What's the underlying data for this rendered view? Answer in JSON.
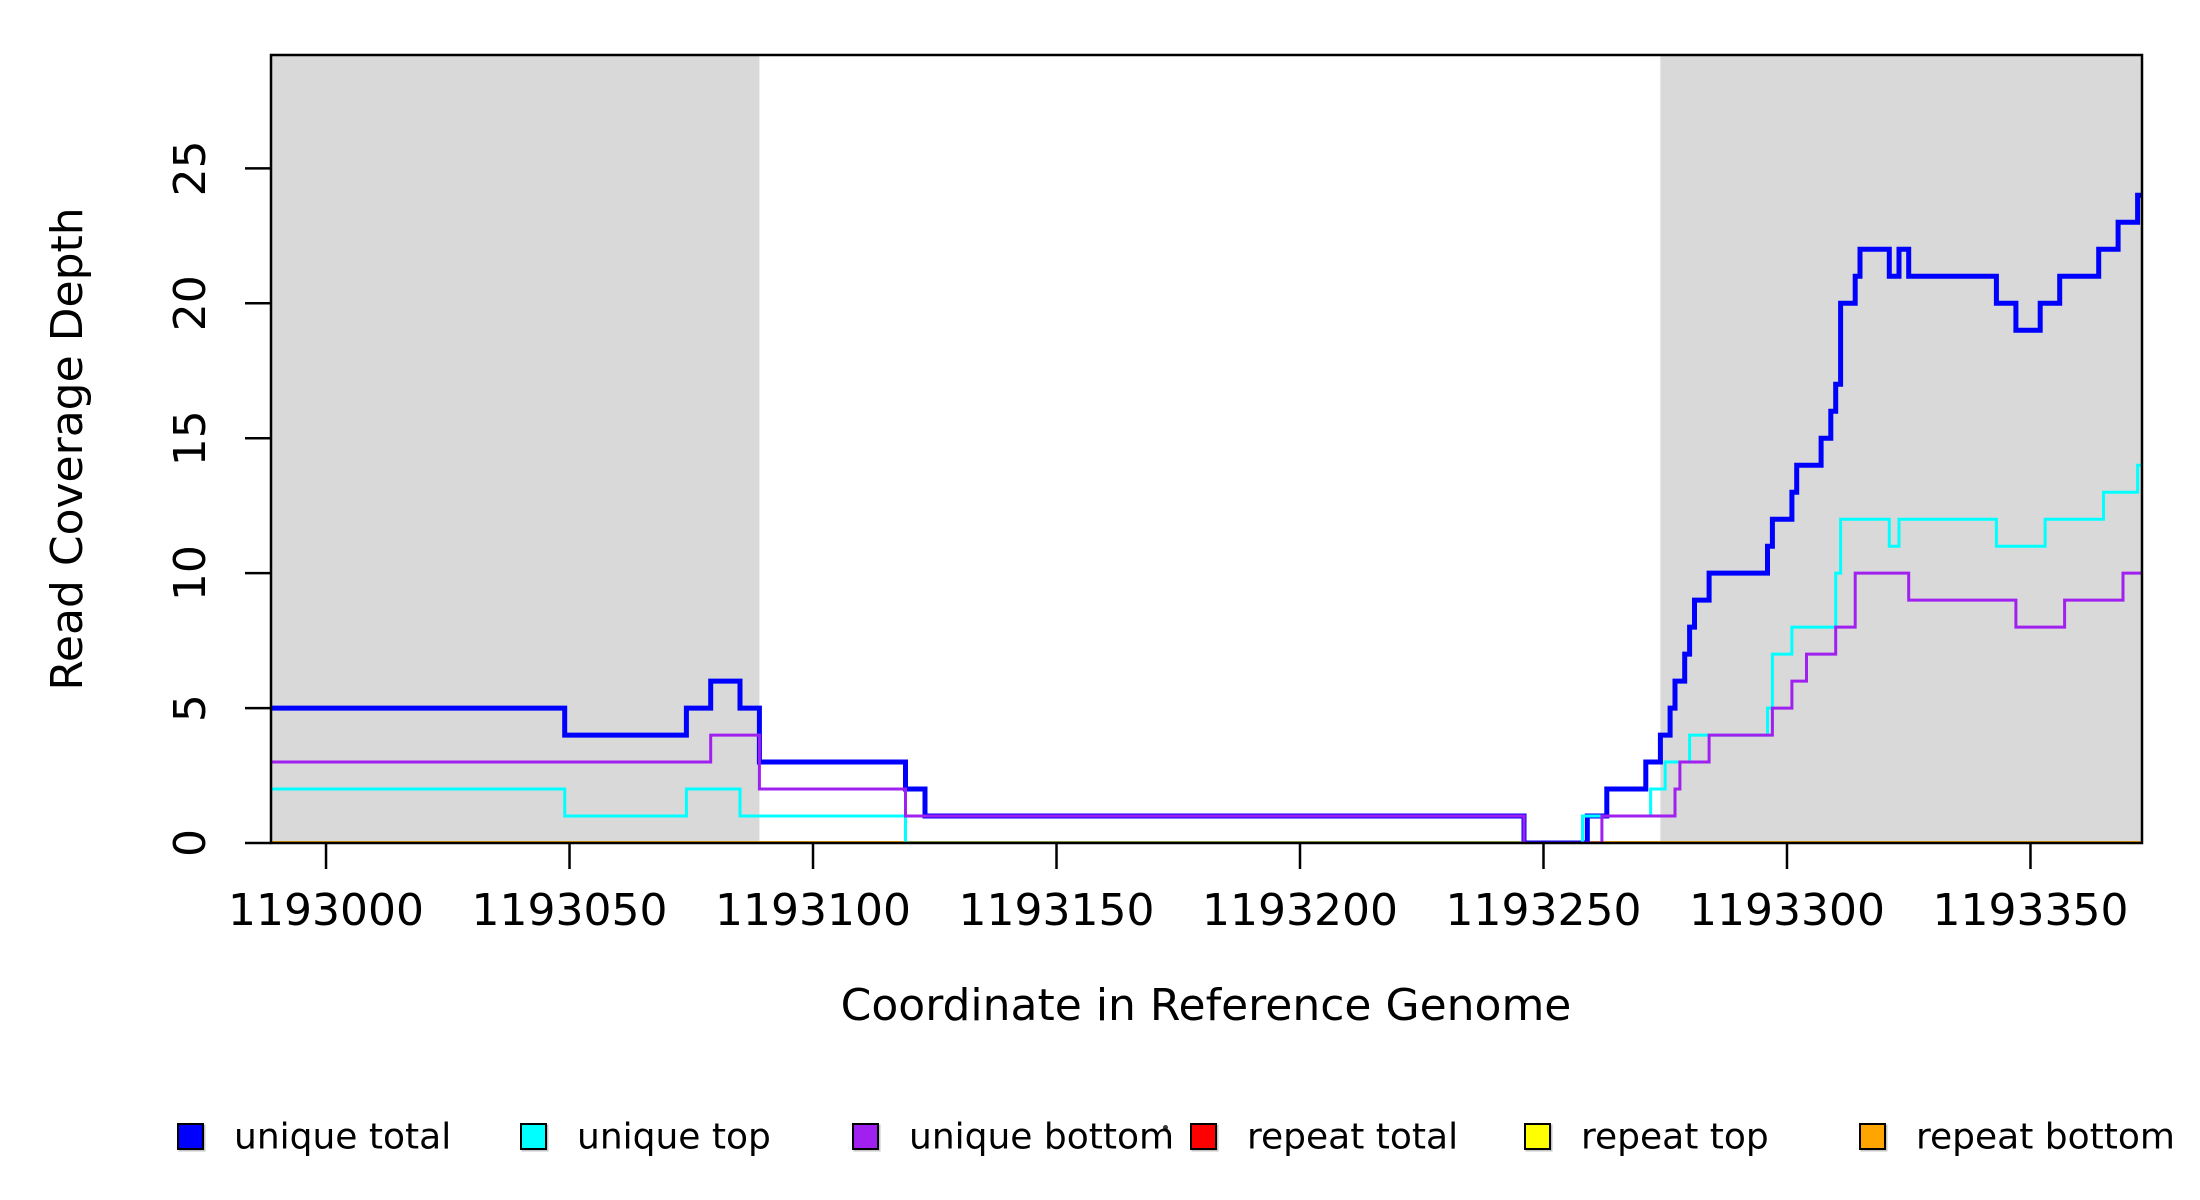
{
  "chart_data": {
    "type": "line",
    "subtype": "step-after",
    "title": "",
    "xlabel": "Coordinate in Reference Genome",
    "ylabel": "Read Coverage Depth",
    "xlim": [
      1192988.7,
      1193372.9
    ],
    "ylim": [
      0,
      29.2
    ],
    "x_ticks": [
      1193000,
      1193050,
      1193100,
      1193150,
      1193200,
      1193250,
      1193300,
      1193350
    ],
    "y_ticks": [
      0,
      5,
      10,
      15,
      20,
      25
    ],
    "grid": false,
    "background_color": "#FFFFFF",
    "highlight_color": "#D9D9D9",
    "highlight_border_color": "#000000",
    "highlight_regions": [
      {
        "x0": 1192988.7,
        "x1": 1193089
      },
      {
        "x0": 1193274,
        "x1": 1193372.9
      }
    ],
    "legend_position": "bottom",
    "draw_order": [
      "repeat total",
      "repeat top",
      "repeat bottom",
      "unique total",
      "unique top",
      "unique bottom"
    ],
    "series": [
      {
        "name": "unique total",
        "color": "#0000FF",
        "line_width": 5,
        "points": [
          [
            1192988.7,
            5
          ],
          [
            1193049,
            4
          ],
          [
            1193074,
            5
          ],
          [
            1193079,
            6
          ],
          [
            1193085,
            5
          ],
          [
            1193089,
            3
          ],
          [
            1193119,
            2
          ],
          [
            1193123,
            1
          ],
          [
            1193246,
            0
          ],
          [
            1193259,
            1
          ],
          [
            1193263,
            2
          ],
          [
            1193271,
            3
          ],
          [
            1193274,
            4
          ],
          [
            1193276,
            5
          ],
          [
            1193277,
            6
          ],
          [
            1193279,
            7
          ],
          [
            1193280,
            8
          ],
          [
            1193281,
            9
          ],
          [
            1193284,
            10
          ],
          [
            1193296,
            11
          ],
          [
            1193297,
            12
          ],
          [
            1193301,
            13
          ],
          [
            1193302,
            14
          ],
          [
            1193307,
            15
          ],
          [
            1193309,
            16
          ],
          [
            1193310,
            17
          ],
          [
            1193311,
            20
          ],
          [
            1193314,
            21
          ],
          [
            1193315,
            22
          ],
          [
            1193321,
            21
          ],
          [
            1193323,
            22
          ],
          [
            1193325,
            21
          ],
          [
            1193343,
            20
          ],
          [
            1193347,
            19
          ],
          [
            1193352,
            20
          ],
          [
            1193356,
            21
          ],
          [
            1193364,
            22
          ],
          [
            1193368,
            23
          ],
          [
            1193372,
            24
          ],
          [
            1193372.9,
            24
          ]
        ]
      },
      {
        "name": "unique top",
        "color": "#00FFFF",
        "line_width": 3,
        "points": [
          [
            1192988.7,
            2
          ],
          [
            1193049,
            1
          ],
          [
            1193074,
            2
          ],
          [
            1193085,
            1
          ],
          [
            1193119,
            0
          ],
          [
            1193258,
            1
          ],
          [
            1193272,
            2
          ],
          [
            1193275,
            3
          ],
          [
            1193280,
            4
          ],
          [
            1193296,
            5
          ],
          [
            1193297,
            7
          ],
          [
            1193301,
            8
          ],
          [
            1193310,
            10
          ],
          [
            1193311,
            12
          ],
          [
            1193321,
            11
          ],
          [
            1193323,
            12
          ],
          [
            1193343,
            11
          ],
          [
            1193353,
            12
          ],
          [
            1193365,
            13
          ],
          [
            1193372,
            14
          ],
          [
            1193372.9,
            14
          ]
        ]
      },
      {
        "name": "unique bottom",
        "color": "#A020F0",
        "line_width": 3,
        "points": [
          [
            1192988.7,
            3
          ],
          [
            1193079,
            4
          ],
          [
            1193089,
            2
          ],
          [
            1193119,
            1
          ],
          [
            1193246,
            0
          ],
          [
            1193262,
            1
          ],
          [
            1193277,
            2
          ],
          [
            1193278,
            3
          ],
          [
            1193284,
            4
          ],
          [
            1193297,
            5
          ],
          [
            1193301,
            6
          ],
          [
            1193304,
            7
          ],
          [
            1193310,
            8
          ],
          [
            1193314,
            10
          ],
          [
            1193325,
            9
          ],
          [
            1193347,
            8
          ],
          [
            1193357,
            9
          ],
          [
            1193369,
            10
          ],
          [
            1193372.9,
            10
          ]
        ]
      },
      {
        "name": "repeat total",
        "color": "#FF0000",
        "line_width": 3,
        "points": [
          [
            1192988.7,
            0
          ],
          [
            1193372.9,
            0
          ]
        ]
      },
      {
        "name": "repeat top",
        "color": "#FFFF00",
        "line_width": 3,
        "points": [
          [
            1192988.7,
            0
          ],
          [
            1193372.9,
            0
          ]
        ]
      },
      {
        "name": "repeat bottom",
        "color": "#FFA500",
        "line_width": 4,
        "points": [
          [
            1192988.7,
            0
          ],
          [
            1193372.9,
            0
          ]
        ]
      }
    ]
  }
}
